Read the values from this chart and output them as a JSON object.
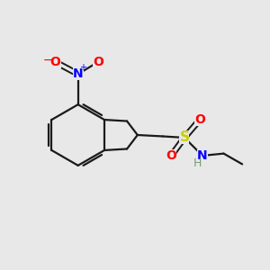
{
  "background_color": "#e8e8e8",
  "bond_color": "#1a1a1a",
  "colors": {
    "O": "#ff0000",
    "N_nitro": "#0000ff",
    "S": "#cccc00",
    "N_sulfonamide": "#0000ff",
    "H": "#7a9a7a",
    "C": "#1a1a1a"
  },
  "figsize": [
    3.0,
    3.0
  ],
  "dpi": 100
}
